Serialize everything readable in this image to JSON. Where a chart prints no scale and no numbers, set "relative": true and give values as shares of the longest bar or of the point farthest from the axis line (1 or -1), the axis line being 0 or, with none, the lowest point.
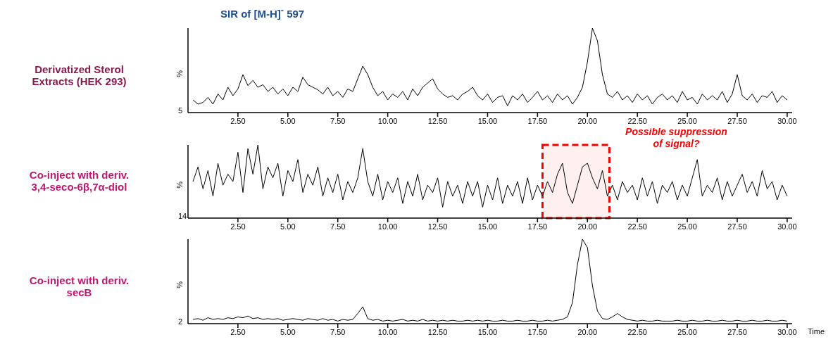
{
  "chart_data": [
    {
      "type": "line",
      "title": "SIR of [M-H]$^{-}$ 597",
      "subtitle": "Derivatized Sterol Extracts (HEK 293)",
      "ylabel": "%",
      "relative": true,
      "grid": false,
      "annotations": [
        "5"
      ],
      "xlim": [
        0,
        30.25
      ],
      "xticks": [
        {
          "value": 2.5,
          "label": "2.50"
        },
        {
          "value": 5,
          "label": "5.00"
        },
        {
          "value": 7.5,
          "label": "7.50"
        },
        {
          "value": 10,
          "label": "10.00"
        },
        {
          "value": 12.5,
          "label": "12.50"
        },
        {
          "value": 15,
          "label": "15.00"
        },
        {
          "value": 17.5,
          "label": "17.50"
        },
        {
          "value": 20,
          "label": "20.00"
        },
        {
          "value": 22.5,
          "label": "22.50"
        },
        {
          "value": 25,
          "label": "25.00"
        },
        {
          "value": 27.5,
          "label": "27.50"
        },
        {
          "value": 30,
          "label": "30.00"
        }
      ],
      "x": [
        0.25,
        0.5,
        0.75,
        1,
        1.25,
        1.5,
        1.75,
        2,
        2.25,
        2.5,
        2.75,
        3,
        3.25,
        3.5,
        3.75,
        4,
        4.25,
        4.5,
        4.75,
        5,
        5.25,
        5.5,
        5.75,
        6,
        6.25,
        6.5,
        6.75,
        7,
        7.25,
        7.5,
        7.75,
        8,
        8.25,
        8.5,
        8.75,
        9,
        9.25,
        9.5,
        9.75,
        10,
        10.25,
        10.5,
        10.75,
        11,
        11.25,
        11.5,
        11.75,
        12,
        12.25,
        12.5,
        12.75,
        13,
        13.25,
        13.5,
        13.75,
        14,
        14.25,
        14.5,
        14.75,
        15,
        15.25,
        15.5,
        15.75,
        16,
        16.25,
        16.5,
        16.75,
        17,
        17.25,
        17.5,
        17.75,
        18,
        18.25,
        18.5,
        18.75,
        19,
        19.25,
        19.5,
        19.75,
        20,
        20.25,
        20.5,
        20.75,
        21,
        21.25,
        21.5,
        21.75,
        22,
        22.25,
        22.5,
        22.75,
        23,
        23.25,
        23.5,
        23.75,
        24,
        24.25,
        24.5,
        24.75,
        25,
        25.25,
        25.5,
        25.75,
        26,
        26.25,
        26.5,
        26.75,
        27,
        27.25,
        27.5,
        27.75,
        28,
        28.25,
        28.5,
        28.75,
        29,
        29.25,
        29.5,
        29.75,
        30
      ],
      "series": [
        {
          "color": "#000000",
          "values": [
            0.15,
            0.1,
            0.12,
            0.18,
            0.1,
            0.22,
            0.15,
            0.3,
            0.2,
            0.28,
            0.45,
            0.32,
            0.38,
            0.3,
            0.33,
            0.25,
            0.3,
            0.22,
            0.28,
            0.2,
            0.3,
            0.25,
            0.42,
            0.33,
            0.3,
            0.27,
            0.22,
            0.3,
            0.2,
            0.25,
            0.18,
            0.28,
            0.25,
            0.4,
            0.55,
            0.45,
            0.3,
            0.2,
            0.25,
            0.15,
            0.22,
            0.18,
            0.25,
            0.15,
            0.28,
            0.2,
            0.3,
            0.35,
            0.4,
            0.28,
            0.22,
            0.18,
            0.2,
            0.15,
            0.22,
            0.25,
            0.3,
            0.2,
            0.15,
            0.22,
            0.12,
            0.18,
            0.2,
            0.08,
            0.2,
            0.15,
            0.22,
            0.12,
            0.18,
            0.25,
            0.15,
            0.2,
            0.12,
            0.22,
            0.15,
            0.2,
            0.1,
            0.18,
            0.3,
            0.6,
            1,
            0.85,
            0.45,
            0.22,
            0.18,
            0.25,
            0.15,
            0.2,
            0.12,
            0.22,
            0.15,
            0.2,
            0.1,
            0.18,
            0.22,
            0.15,
            0.2,
            0.12,
            0.25,
            0.15,
            0.18,
            0.1,
            0.22,
            0.15,
            0.2,
            0.15,
            0.25,
            0.12,
            0.22,
            0.45,
            0.2,
            0.15,
            0.22,
            0.12,
            0.2,
            0.18,
            0.25,
            0.12,
            0.2,
            0.15
          ]
        }
      ]
    },
    {
      "type": "line",
      "subtitle": "Co-inject with deriv. 3,4-seco-6β,7α-diol",
      "ylabel": "%",
      "relative": true,
      "grid": false,
      "annotations": [
        "14"
      ],
      "bands": [
        {
          "axis": "x",
          "from": 17.75,
          "to": 21.1,
          "label": "Possible suppression of signal?",
          "color": "#ff0000"
        }
      ],
      "xlim": [
        0,
        30.25
      ],
      "xticks": [
        {
          "value": 2.5,
          "label": "2.50"
        },
        {
          "value": 5,
          "label": "5.00"
        },
        {
          "value": 7.5,
          "label": "7.50"
        },
        {
          "value": 10,
          "label": "10.00"
        },
        {
          "value": 12.5,
          "label": "12.50"
        },
        {
          "value": 15,
          "label": "15.00"
        },
        {
          "value": 17.5,
          "label": "17.50"
        },
        {
          "value": 20,
          "label": "20.00"
        },
        {
          "value": 22.5,
          "label": "22.50"
        },
        {
          "value": 25,
          "label": "25.00"
        },
        {
          "value": 27.5,
          "label": "27.50"
        },
        {
          "value": 30,
          "label": "30.00"
        }
      ],
      "x": [
        0.25,
        0.5,
        0.75,
        1,
        1.25,
        1.5,
        1.75,
        2,
        2.25,
        2.5,
        2.75,
        3,
        3.25,
        3.5,
        3.75,
        4,
        4.25,
        4.5,
        4.75,
        5,
        5.25,
        5.5,
        5.75,
        6,
        6.25,
        6.5,
        6.75,
        7,
        7.25,
        7.5,
        7.75,
        8,
        8.25,
        8.5,
        8.75,
        9,
        9.25,
        9.5,
        9.75,
        10,
        10.25,
        10.5,
        10.75,
        11,
        11.25,
        11.5,
        11.75,
        12,
        12.25,
        12.5,
        12.75,
        13,
        13.25,
        13.5,
        13.75,
        14,
        14.25,
        14.5,
        14.75,
        15,
        15.25,
        15.5,
        15.75,
        16,
        16.25,
        16.5,
        16.75,
        17,
        17.25,
        17.5,
        17.75,
        18,
        18.25,
        18.5,
        18.75,
        19,
        19.25,
        19.5,
        19.75,
        20,
        20.25,
        20.5,
        20.75,
        21,
        21.25,
        21.5,
        21.75,
        22,
        22.25,
        22.5,
        22.75,
        23,
        23.25,
        23.5,
        23.75,
        24,
        24.25,
        24.5,
        24.75,
        25,
        25.25,
        25.5,
        25.75,
        26,
        26.25,
        26.5,
        26.75,
        27,
        27.25,
        27.5,
        27.75,
        28,
        28.25,
        28.5,
        28.75,
        29,
        29.25,
        29.5,
        29.75,
        30
      ],
      "series": [
        {
          "color": "#000000",
          "values": [
            0.5,
            0.7,
            0.4,
            0.65,
            0.3,
            0.75,
            0.45,
            0.6,
            0.5,
            0.9,
            0.35,
            0.95,
            0.6,
            1,
            0.4,
            0.7,
            0.55,
            0.75,
            0.3,
            0.65,
            0.5,
            0.8,
            0.35,
            0.6,
            0.45,
            0.7,
            0.3,
            0.55,
            0.35,
            0.6,
            0.25,
            0.5,
            0.35,
            0.55,
            0.95,
            0.5,
            0.3,
            0.6,
            0.25,
            0.5,
            0.35,
            0.55,
            0.2,
            0.5,
            0.3,
            0.6,
            0.25,
            0.45,
            0.35,
            0.55,
            0.15,
            0.5,
            0.3,
            0.45,
            0.2,
            0.5,
            0.3,
            0.5,
            0.15,
            0.45,
            0.25,
            0.55,
            0.2,
            0.45,
            0.3,
            0.5,
            0.2,
            0.55,
            0.25,
            0.45,
            0.3,
            0.5,
            0.35,
            0.6,
            0.75,
            0.35,
            0.2,
            0.45,
            0.7,
            0.75,
            0.55,
            0.4,
            0.65,
            0.3,
            0.45,
            0.25,
            0.5,
            0.35,
            0.45,
            0.25,
            0.55,
            0.3,
            0.5,
            0.2,
            0.45,
            0.35,
            0.5,
            0.25,
            0.45,
            0.3,
            0.55,
            0.8,
            0.3,
            0.45,
            0.35,
            0.55,
            0.25,
            0.5,
            0.3,
            0.45,
            0.6,
            0.35,
            0.5,
            0.3,
            0.65,
            0.4,
            0.5,
            0.25,
            0.45,
            0.3
          ]
        }
      ]
    },
    {
      "type": "line",
      "subtitle": "Co-inject with deriv. secB",
      "ylabel": "%",
      "xlabel": "Time",
      "relative": true,
      "grid": false,
      "annotations": [
        "2"
      ],
      "xlim": [
        0,
        30.25
      ],
      "xticks": [
        {
          "value": 2.5,
          "label": "2.50"
        },
        {
          "value": 5,
          "label": "5.00"
        },
        {
          "value": 7.5,
          "label": "7.50"
        },
        {
          "value": 10,
          "label": "10.00"
        },
        {
          "value": 12.5,
          "label": "12.50"
        },
        {
          "value": 15,
          "label": "15.00"
        },
        {
          "value": 17.5,
          "label": "17.50"
        },
        {
          "value": 20,
          "label": "20.00"
        },
        {
          "value": 22.5,
          "label": "22.50"
        },
        {
          "value": 25,
          "label": "25.00"
        },
        {
          "value": 27.5,
          "label": "27.50"
        },
        {
          "value": 30,
          "label": "30.00"
        }
      ],
      "x": [
        0.25,
        0.5,
        0.75,
        1,
        1.25,
        1.5,
        1.75,
        2,
        2.25,
        2.5,
        2.75,
        3,
        3.25,
        3.5,
        3.75,
        4,
        4.25,
        4.5,
        4.75,
        5,
        5.25,
        5.5,
        5.75,
        6,
        6.25,
        6.5,
        6.75,
        7,
        7.25,
        7.5,
        7.75,
        8,
        8.25,
        8.5,
        8.75,
        9,
        9.25,
        9.5,
        9.75,
        10,
        10.25,
        10.5,
        10.75,
        11,
        11.25,
        11.5,
        11.75,
        12,
        12.25,
        12.5,
        12.75,
        13,
        13.25,
        13.5,
        13.75,
        14,
        14.25,
        14.5,
        14.75,
        15,
        15.25,
        15.5,
        15.75,
        16,
        16.25,
        16.5,
        16.75,
        17,
        17.25,
        17.5,
        17.75,
        18,
        18.25,
        18.5,
        18.75,
        19,
        19.25,
        19.5,
        19.75,
        20,
        20.25,
        20.5,
        20.75,
        21,
        21.25,
        21.5,
        21.75,
        22,
        22.25,
        22.5,
        22.75,
        23,
        23.25,
        23.5,
        23.75,
        24,
        24.25,
        24.5,
        24.75,
        25,
        25.25,
        25.5,
        25.75,
        26,
        26.25,
        26.5,
        26.75,
        27,
        27.25,
        27.5,
        27.75,
        28,
        28.25,
        28.5,
        28.75,
        29,
        29.25,
        29.5,
        29.75,
        30
      ],
      "series": [
        {
          "color": "#000000",
          "values": [
            0.05,
            0.06,
            0.04,
            0.07,
            0.05,
            0.06,
            0.05,
            0.07,
            0.06,
            0.08,
            0.07,
            0.09,
            0.06,
            0.07,
            0.05,
            0.06,
            0.05,
            0.06,
            0.04,
            0.05,
            0.06,
            0.05,
            0.04,
            0.06,
            0.05,
            0.04,
            0.06,
            0.04,
            0.05,
            0.03,
            0.05,
            0.04,
            0.05,
            0.12,
            0.2,
            0.06,
            0.04,
            0.05,
            0.03,
            0.04,
            0.03,
            0.04,
            0.05,
            0.03,
            0.04,
            0.03,
            0.05,
            0.03,
            0.04,
            0.03,
            0.04,
            0.03,
            0.04,
            0.03,
            0.03,
            0.04,
            0.03,
            0.04,
            0.03,
            0.04,
            0.03,
            0.03,
            0.04,
            0.03,
            0.03,
            0.04,
            0.03,
            0.03,
            0.04,
            0.03,
            0.03,
            0.04,
            0.03,
            0.04,
            0.05,
            0.08,
            0.25,
            0.7,
            1,
            0.9,
            0.45,
            0.15,
            0.06,
            0.05,
            0.08,
            0.12,
            0.08,
            0.05,
            0.04,
            0.03,
            0.04,
            0.03,
            0.03,
            0.04,
            0.03,
            0.03,
            0.03,
            0.04,
            0.03,
            0.03,
            0.04,
            0.03,
            0.03,
            0.04,
            0.03,
            0.03,
            0.04,
            0.03,
            0.03,
            0.04,
            0.03,
            0.03,
            0.04,
            0.03,
            0.03,
            0.04,
            0.03,
            0.03,
            0.04,
            0.03
          ]
        }
      ]
    }
  ]
}
